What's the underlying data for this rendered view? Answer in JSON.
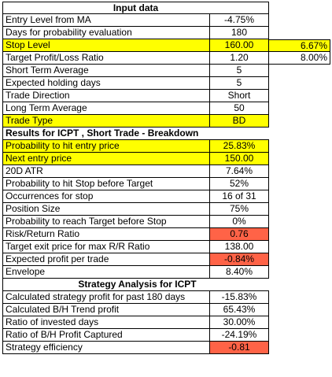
{
  "colors": {
    "highlight_yellow": "#ffff00",
    "highlight_red": "#ff6347"
  },
  "input_header": "Input data",
  "input_rows": [
    {
      "label": "Entry Level from MA",
      "value": "-4.75%",
      "extra": ""
    },
    {
      "label": "Days for probability evaluation",
      "value": "180",
      "extra": ""
    },
    {
      "label": "Stop Level",
      "value": "160.00",
      "extra": "6.67%"
    },
    {
      "label": "Target Profit/Loss Ratio",
      "value": "1.20",
      "extra": "8.00%"
    },
    {
      "label": "Short Term Average",
      "value": "5",
      "extra": ""
    },
    {
      "label": "Expected holding days",
      "value": "5",
      "extra": ""
    },
    {
      "label": "Trade Direction",
      "value": "Short",
      "extra": ""
    },
    {
      "label": "Long Term Average",
      "value": "50",
      "extra": ""
    },
    {
      "label": "Trade Type",
      "value": "BD",
      "extra": ""
    }
  ],
  "results_header": "Results for ICPT , Short Trade - Breakdown",
  "result_rows": [
    {
      "label": "Probability to hit entry price",
      "value": "25.83%"
    },
    {
      "label": "Next entry price",
      "value": "150.00"
    },
    {
      "label": "20D ATR",
      "value": "7.64%"
    },
    {
      "label": "Probability to hit Stop before Target",
      "value": "52%"
    },
    {
      "label": "Occurrences for stop",
      "value": "16 of 31"
    },
    {
      "label": "Position Size",
      "value": "75%"
    },
    {
      "label": "Probability to reach Target before Stop",
      "value": "0%"
    },
    {
      "label": "Risk/Return Ratio",
      "value": "0.76"
    },
    {
      "label": "Target exit price for max R/R Ratio",
      "value": "138.00"
    },
    {
      "label": "Expected profit per trade",
      "value": "-0.84%"
    },
    {
      "label": "Envelope",
      "value": "8.40%"
    }
  ],
  "strategy_header": "Strategy Analysis for ICPT",
  "strategy_rows": [
    {
      "label": "Calculated strategy profit for past 180 days",
      "value": "-15.83%"
    },
    {
      "label": "Calculated B/H Trend profit",
      "value": "65.43%"
    },
    {
      "label": "Ratio of invested days",
      "value": "30.00%"
    },
    {
      "label": "Ratio of B/H Profit Captured",
      "value": "-24.19%"
    },
    {
      "label": "Strategy efficiency",
      "value": "-0.81"
    }
  ]
}
